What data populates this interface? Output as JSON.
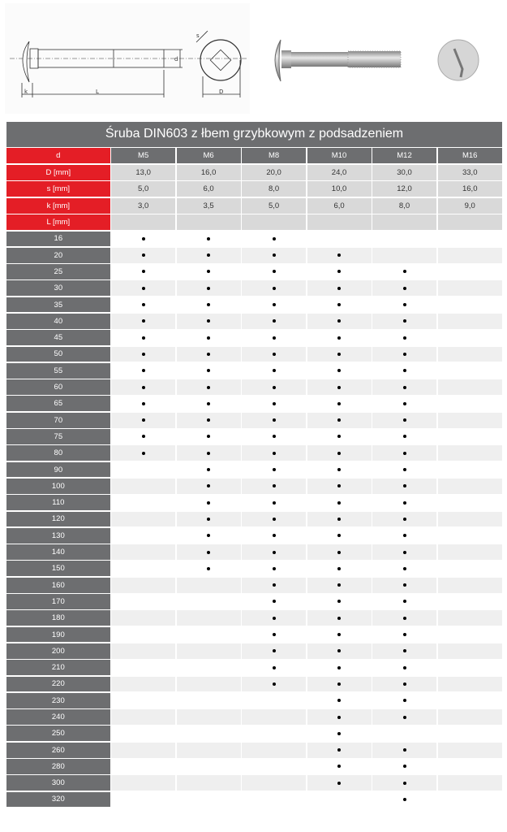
{
  "title": "Śruba DIN603 z łbem grzybkowym z podsadzeniem",
  "drawing_labels": {
    "k": "k",
    "L": "L",
    "d": "d",
    "s": "s",
    "D": "D"
  },
  "colors": {
    "red": "#e41e26",
    "dark": "#6d6e70",
    "light": "#d9d9d9",
    "alt": "#efefef"
  },
  "header": {
    "label": "d",
    "sizes": [
      "M5",
      "M6",
      "M8",
      "M10",
      "M12",
      "M16"
    ]
  },
  "dims": [
    {
      "label": "D [mm]",
      "values": [
        "13,0",
        "16,0",
        "20,0",
        "24,0",
        "30,0",
        "33,0"
      ]
    },
    {
      "label": "s [mm]",
      "values": [
        "5,0",
        "6,0",
        "8,0",
        "10,0",
        "12,0",
        "16,0"
      ]
    },
    {
      "label": "k [mm]",
      "values": [
        "3,0",
        "3,5",
        "5,0",
        "6,0",
        "8,0",
        "9,0"
      ]
    },
    {
      "label": "L [mm]",
      "values": [
        "",
        "",
        "",
        "",
        "",
        ""
      ]
    }
  ],
  "lengths": [
    {
      "L": "16",
      "avail": [
        1,
        1,
        1,
        0,
        0,
        0
      ]
    },
    {
      "L": "20",
      "avail": [
        1,
        1,
        1,
        1,
        0,
        0
      ]
    },
    {
      "L": "25",
      "avail": [
        1,
        1,
        1,
        1,
        1,
        0
      ]
    },
    {
      "L": "30",
      "avail": [
        1,
        1,
        1,
        1,
        1,
        0
      ]
    },
    {
      "L": "35",
      "avail": [
        1,
        1,
        1,
        1,
        1,
        0
      ]
    },
    {
      "L": "40",
      "avail": [
        1,
        1,
        1,
        1,
        1,
        0
      ]
    },
    {
      "L": "45",
      "avail": [
        1,
        1,
        1,
        1,
        1,
        0
      ]
    },
    {
      "L": "50",
      "avail": [
        1,
        1,
        1,
        1,
        1,
        0
      ]
    },
    {
      "L": "55",
      "avail": [
        1,
        1,
        1,
        1,
        1,
        0
      ]
    },
    {
      "L": "60",
      "avail": [
        1,
        1,
        1,
        1,
        1,
        0
      ]
    },
    {
      "L": "65",
      "avail": [
        1,
        1,
        1,
        1,
        1,
        0
      ]
    },
    {
      "L": "70",
      "avail": [
        1,
        1,
        1,
        1,
        1,
        0
      ]
    },
    {
      "L": "75",
      "avail": [
        1,
        1,
        1,
        1,
        1,
        0
      ]
    },
    {
      "L": "80",
      "avail": [
        1,
        1,
        1,
        1,
        1,
        0
      ]
    },
    {
      "L": "90",
      "avail": [
        0,
        1,
        1,
        1,
        1,
        0
      ]
    },
    {
      "L": "100",
      "avail": [
        0,
        1,
        1,
        1,
        1,
        0
      ]
    },
    {
      "L": "110",
      "avail": [
        0,
        1,
        1,
        1,
        1,
        0
      ]
    },
    {
      "L": "120",
      "avail": [
        0,
        1,
        1,
        1,
        1,
        0
      ]
    },
    {
      "L": "130",
      "avail": [
        0,
        1,
        1,
        1,
        1,
        0
      ]
    },
    {
      "L": "140",
      "avail": [
        0,
        1,
        1,
        1,
        1,
        0
      ]
    },
    {
      "L": "150",
      "avail": [
        0,
        1,
        1,
        1,
        1,
        0
      ]
    },
    {
      "L": "160",
      "avail": [
        0,
        0,
        1,
        1,
        1,
        0
      ]
    },
    {
      "L": "170",
      "avail": [
        0,
        0,
        1,
        1,
        1,
        0
      ]
    },
    {
      "L": "180",
      "avail": [
        0,
        0,
        1,
        1,
        1,
        0
      ]
    },
    {
      "L": "190",
      "avail": [
        0,
        0,
        1,
        1,
        1,
        0
      ]
    },
    {
      "L": "200",
      "avail": [
        0,
        0,
        1,
        1,
        1,
        0
      ]
    },
    {
      "L": "210",
      "avail": [
        0,
        0,
        1,
        1,
        1,
        0
      ]
    },
    {
      "L": "220",
      "avail": [
        0,
        0,
        1,
        1,
        1,
        0
      ]
    },
    {
      "L": "230",
      "avail": [
        0,
        0,
        0,
        1,
        1,
        0
      ]
    },
    {
      "L": "240",
      "avail": [
        0,
        0,
        0,
        1,
        1,
        0
      ]
    },
    {
      "L": "250",
      "avail": [
        0,
        0,
        0,
        1,
        0,
        0
      ]
    },
    {
      "L": "260",
      "avail": [
        0,
        0,
        0,
        1,
        1,
        0
      ]
    },
    {
      "L": "280",
      "avail": [
        0,
        0,
        0,
        1,
        1,
        0
      ]
    },
    {
      "L": "300",
      "avail": [
        0,
        0,
        0,
        1,
        1,
        0
      ]
    },
    {
      "L": "320",
      "avail": [
        0,
        0,
        0,
        0,
        1,
        0
      ]
    }
  ]
}
